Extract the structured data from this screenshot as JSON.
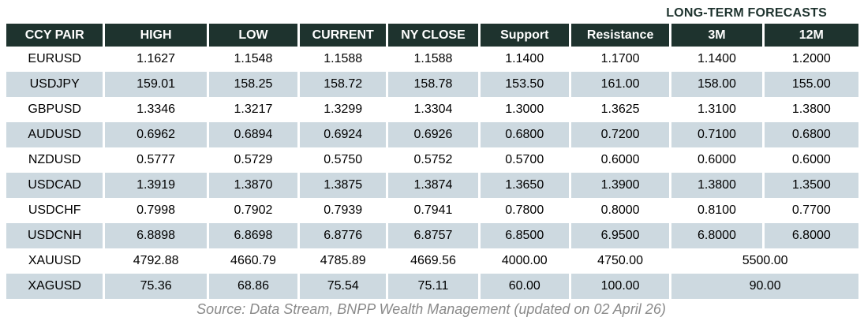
{
  "title": "LONG-TERM FORECASTS",
  "table": {
    "columns": [
      "CCY PAIR",
      "HIGH",
      "LOW",
      "CURRENT",
      "NY CLOSE",
      "Support",
      "Resistance",
      "3M",
      "12M"
    ],
    "rows": [
      {
        "cells": [
          "EURUSD",
          "1.1627",
          "1.1548",
          "1.1588",
          "1.1588",
          "1.1400",
          "1.1700",
          "1.1400",
          "1.2000"
        ],
        "merge_last": false
      },
      {
        "cells": [
          "USDJPY",
          "159.01",
          "158.25",
          "158.72",
          "158.78",
          "153.50",
          "161.00",
          "158.00",
          "155.00"
        ],
        "merge_last": false
      },
      {
        "cells": [
          "GBPUSD",
          "1.3346",
          "1.3217",
          "1.3299",
          "1.3304",
          "1.3000",
          "1.3625",
          "1.3100",
          "1.3800"
        ],
        "merge_last": false
      },
      {
        "cells": [
          "AUDUSD",
          "0.6962",
          "0.6894",
          "0.6924",
          "0.6926",
          "0.6800",
          "0.7200",
          "0.7100",
          "0.6800"
        ],
        "merge_last": false
      },
      {
        "cells": [
          "NZDUSD",
          "0.5777",
          "0.5729",
          "0.5750",
          "0.5752",
          "0.5700",
          "0.6000",
          "0.6000",
          "0.6000"
        ],
        "merge_last": false
      },
      {
        "cells": [
          "USDCAD",
          "1.3919",
          "1.3870",
          "1.3875",
          "1.3874",
          "1.3650",
          "1.3900",
          "1.3800",
          "1.3500"
        ],
        "merge_last": false
      },
      {
        "cells": [
          "USDCHF",
          "0.7998",
          "0.7902",
          "0.7939",
          "0.7941",
          "0.7800",
          "0.8000",
          "0.8100",
          "0.7700"
        ],
        "merge_last": false
      },
      {
        "cells": [
          "USDCNH",
          "6.8898",
          "6.8698",
          "6.8776",
          "6.8757",
          "6.8500",
          "6.9500",
          "6.8000",
          "6.8000"
        ],
        "merge_last": false
      },
      {
        "cells": [
          "XAUUSD",
          "4792.88",
          "4660.79",
          "4785.89",
          "4669.56",
          "4000.00",
          "4750.00",
          "5500.00"
        ],
        "merge_last": true
      },
      {
        "cells": [
          "XAGUSD",
          "75.36",
          "68.86",
          "75.54",
          "75.11",
          "60.00",
          "100.00",
          "90.00"
        ],
        "merge_last": true
      }
    ]
  },
  "footer": "Source: Data Stream, BNPP Wealth Management (updated on 02 April 26)",
  "colors": {
    "header_bg": "#1e332e",
    "stripe_bg": "#cdd9e0",
    "accent_text": "#1e332e",
    "footer_text": "#8a8a8a"
  }
}
